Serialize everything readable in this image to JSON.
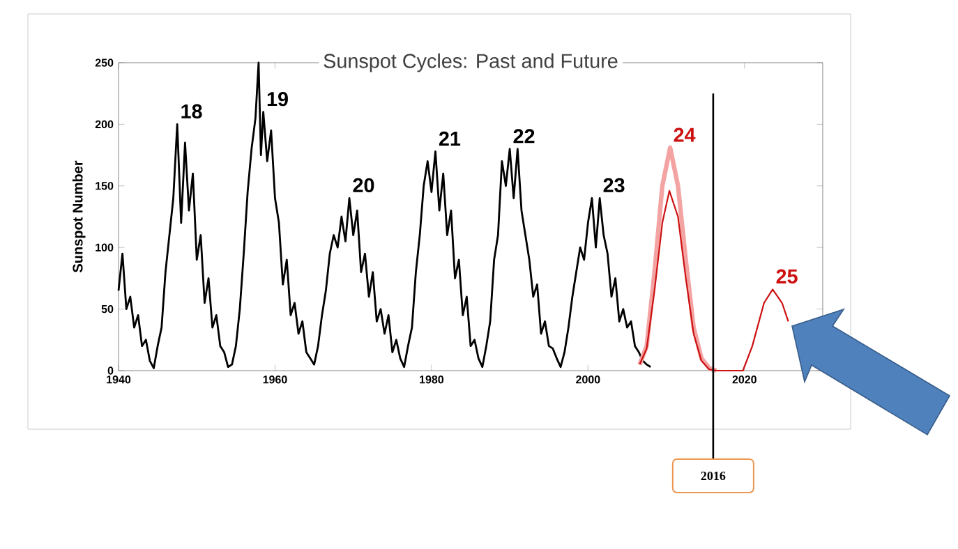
{
  "chart_data": {
    "type": "line",
    "title": "Sunspot Cycles: Past and Future",
    "ylabel": "Sunspot Number",
    "xlim": [
      1940,
      2030
    ],
    "ylim": [
      0,
      250
    ],
    "xticks": [
      1940,
      1960,
      1980,
      2000,
      2020
    ],
    "yticks": [
      0,
      50,
      100,
      150,
      200,
      250
    ],
    "grid": false,
    "marker": "none",
    "line_style": "solid",
    "series": [
      {
        "color": "#000000",
        "x": [
          1940.0,
          1940.5,
          1941.0,
          1941.5,
          1942.0,
          1942.5,
          1943.0,
          1943.5,
          1944.0,
          1944.5,
          1945.0,
          1945.5,
          1946.0,
          1946.5,
          1947.0,
          1947.5,
          1948.0,
          1948.5,
          1949.0,
          1949.5,
          1950.0,
          1950.5,
          1951.0,
          1951.5,
          1952.0,
          1952.5,
          1953.0,
          1953.5,
          1954.0,
          1954.5,
          1955.0,
          1955.5,
          1956.0,
          1956.5,
          1957.0,
          1957.5,
          1957.9,
          1958.2,
          1958.5,
          1959.0,
          1959.5,
          1960.0,
          1960.5,
          1961.0,
          1961.5,
          1962.0,
          1962.5,
          1963.0,
          1963.5,
          1964.0,
          1964.5,
          1965.0,
          1965.5,
          1966.0,
          1966.5,
          1967.0,
          1967.5,
          1968.0,
          1968.5,
          1969.0,
          1969.5,
          1970.0,
          1970.5,
          1971.0,
          1971.5,
          1972.0,
          1972.5,
          1973.0,
          1973.5,
          1974.0,
          1974.5,
          1975.0,
          1975.5,
          1976.0,
          1976.5,
          1977.0,
          1977.5,
          1978.0,
          1978.5,
          1979.0,
          1979.5,
          1980.0,
          1980.5,
          1981.0,
          1981.5,
          1982.0,
          1982.5,
          1983.0,
          1983.5,
          1984.0,
          1984.5,
          1985.0,
          1985.5,
          1986.0,
          1986.5,
          1987.0,
          1987.5,
          1988.0,
          1988.5,
          1989.0,
          1989.5,
          1990.0,
          1990.5,
          1991.0,
          1991.5,
          1992.0,
          1992.5,
          1993.0,
          1993.5,
          1994.0,
          1994.5,
          1995.0,
          1995.5,
          1996.0,
          1996.5,
          1997.0,
          1997.5,
          1998.0,
          1998.5,
          1999.0,
          1999.5,
          2000.0,
          2000.5,
          2001.0,
          2001.5,
          2002.0,
          2002.5,
          2003.0,
          2003.5,
          2004.0,
          2004.5,
          2005.0,
          2005.5,
          2006.0,
          2006.5,
          2007.0,
          2007.5,
          2008.0
        ],
        "values": [
          65,
          95,
          50,
          60,
          35,
          45,
          20,
          25,
          8,
          2,
          20,
          35,
          80,
          110,
          140,
          200,
          120,
          185,
          130,
          160,
          90,
          110,
          55,
          75,
          35,
          45,
          20,
          15,
          3,
          5,
          20,
          50,
          95,
          145,
          180,
          205,
          250,
          175,
          210,
          170,
          195,
          140,
          120,
          70,
          90,
          45,
          55,
          30,
          40,
          15,
          10,
          5,
          20,
          45,
          65,
          95,
          110,
          100,
          125,
          105,
          140,
          110,
          130,
          80,
          95,
          60,
          80,
          40,
          50,
          30,
          45,
          15,
          25,
          10,
          3,
          20,
          35,
          80,
          110,
          150,
          170,
          145,
          178,
          130,
          160,
          110,
          130,
          75,
          90,
          45,
          60,
          20,
          25,
          10,
          3,
          20,
          40,
          90,
          110,
          170,
          150,
          180,
          140,
          180,
          130,
          110,
          90,
          60,
          70,
          30,
          40,
          20,
          18,
          10,
          3,
          15,
          35,
          60,
          80,
          100,
          90,
          120,
          140,
          100,
          140,
          110,
          95,
          60,
          75,
          40,
          50,
          35,
          40,
          20,
          15,
          8,
          5,
          3
        ]
      },
      {
        "color": "#f4a3a3",
        "x": [
          2006.6,
          2007.5,
          2008.5,
          2009.5,
          2010.5,
          2011.5,
          2012.5,
          2013.5,
          2014.5,
          2015.5,
          2016.4
        ],
        "values": [
          5,
          20,
          80,
          150,
          181,
          150,
          90,
          35,
          10,
          2,
          0
        ]
      },
      {
        "color": "#cc1111",
        "x": [
          2006.6,
          2007.5,
          2008.5,
          2009.5,
          2010.4,
          2011.5,
          2012.5,
          2013.5,
          2014.5,
          2015.5,
          2016.4,
          2017.5,
          2019.8,
          2021.0,
          2022.5,
          2023.6,
          2024.8,
          2025.6
        ],
        "values": [
          5,
          18,
          65,
          120,
          146,
          125,
          75,
          30,
          8,
          1,
          0,
          0,
          0,
          20,
          55,
          66,
          55,
          40
        ]
      }
    ],
    "annotations": [
      {
        "text": "18",
        "x": 1947.5,
        "y": 200
      },
      {
        "text": "19",
        "x": 1958.5,
        "y": 210
      },
      {
        "text": "20",
        "x": 1969.5,
        "y": 140
      },
      {
        "text": "21",
        "x": 1980.5,
        "y": 178
      },
      {
        "text": "22",
        "x": 1990.0,
        "y": 180
      },
      {
        "text": "23",
        "x": 2001.5,
        "y": 140
      },
      {
        "text": "24",
        "x": 2010.5,
        "y": 181
      },
      {
        "text": "25",
        "x": 2023.6,
        "y": 66
      }
    ],
    "ref_lines": [
      {
        "axis": "x",
        "value": 2016,
        "label": "2016",
        "color": "#000000"
      }
    ]
  }
}
